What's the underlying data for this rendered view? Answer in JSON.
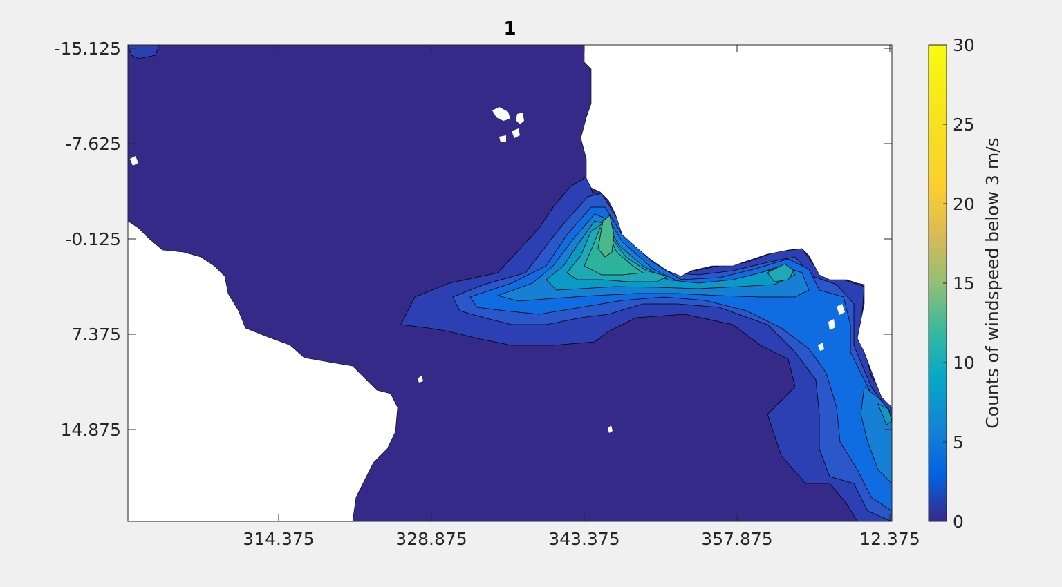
{
  "chart_data": {
    "type": "heatmap",
    "subtype": "filled-contour",
    "title": "1",
    "xlabel": "",
    "ylabel": "",
    "x_ticks": [
      "314.375",
      "328.875",
      "343.375",
      "357.875",
      "12.375"
    ],
    "y_ticks": [
      "-15.125",
      "-7.625",
      "-0.125",
      "7.375",
      "14.875"
    ],
    "colorbar": {
      "label": "Counts of windspeed below 3 m/s",
      "range": [
        0,
        30
      ],
      "ticks": [
        "0",
        "5",
        "10",
        "15",
        "20",
        "25",
        "30"
      ],
      "colormap": "parula"
    },
    "levels": [
      {
        "value": 0,
        "color": "#352a87"
      },
      {
        "value": 1,
        "color": "#2c40b4"
      },
      {
        "value": 3,
        "color": "#2a57c9"
      },
      {
        "value": 5,
        "color": "#0f6ce1"
      },
      {
        "value": 7,
        "color": "#1680d4"
      },
      {
        "value": 9,
        "color": "#0b9ac4"
      },
      {
        "value": 11,
        "color": "#1ea9b6"
      },
      {
        "value": 13,
        "color": "#2cb39c"
      },
      {
        "value": 15,
        "color": "#49b88c"
      },
      {
        "value": 17,
        "color": "#72bd71"
      }
    ],
    "missing_color": "#ffffff",
    "grid": false
  }
}
